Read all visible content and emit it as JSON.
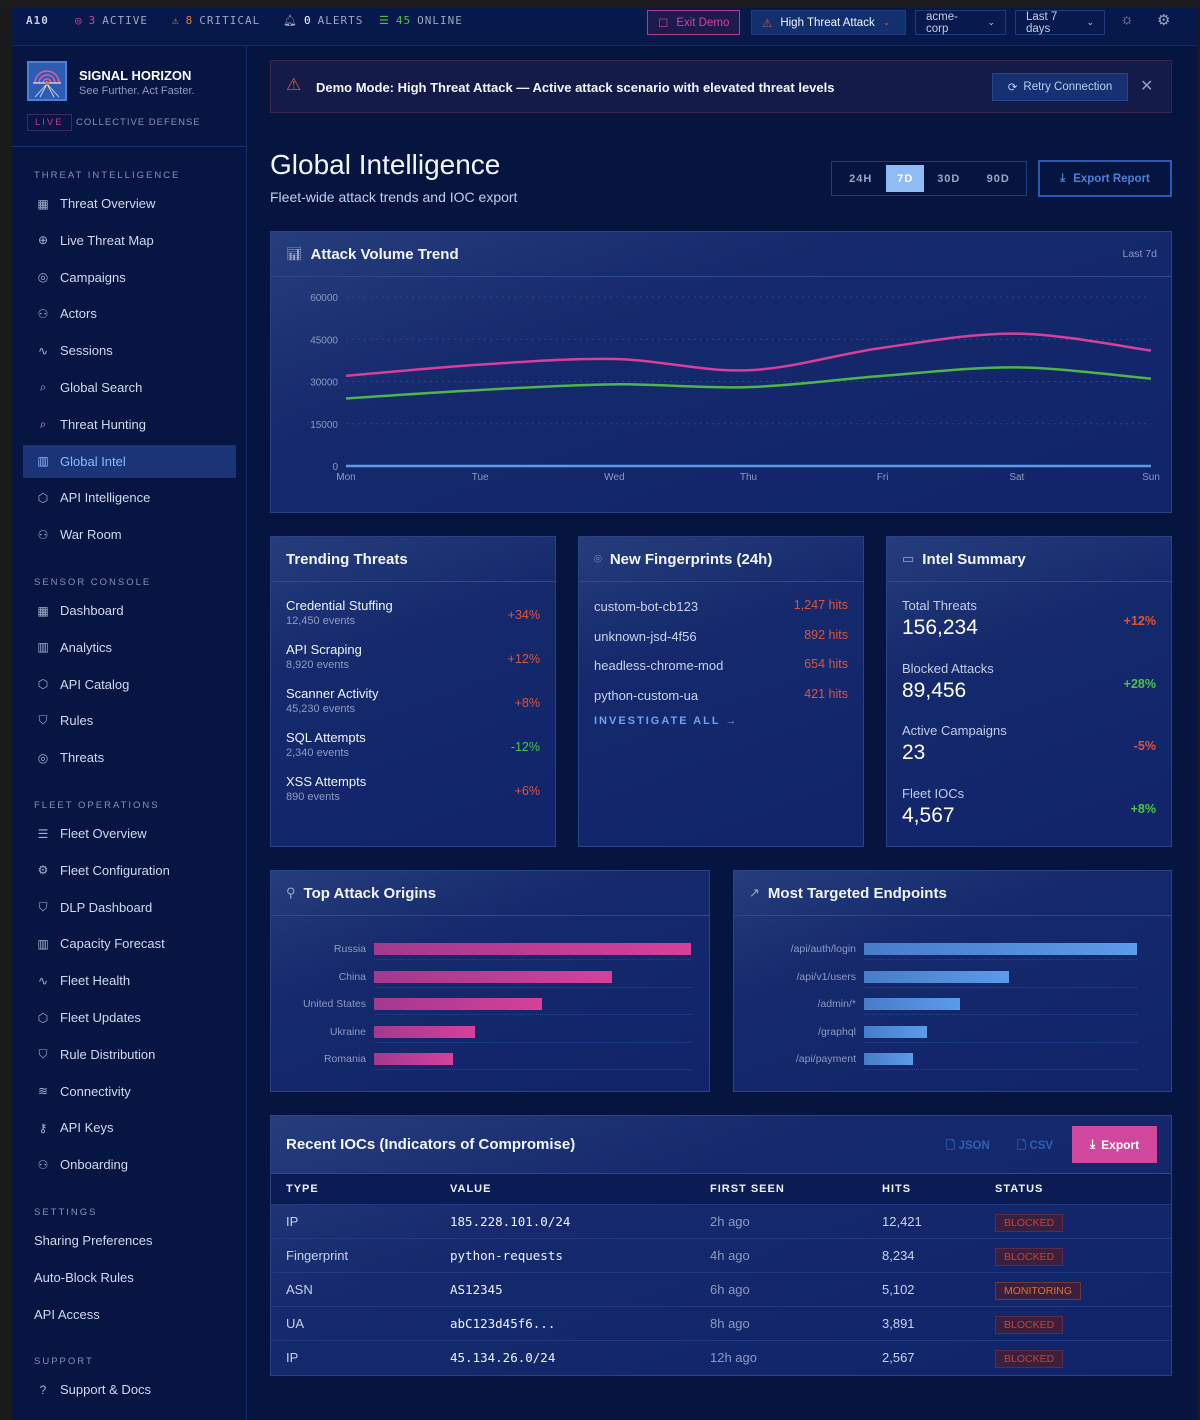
{
  "topbar": {
    "org": "A10",
    "active_count": "3",
    "active_label": "ACTIVE",
    "critical_count": "8",
    "critical_label": "CRITICAL",
    "alerts_count": "0",
    "alerts_label": "ALERTS",
    "online_count": "45",
    "online_label": "ONLINE",
    "exit_demo": "Exit Demo",
    "scenario": "High Threat Attack",
    "tenant": "acme-corp",
    "range": "Last 7 days"
  },
  "brand": {
    "name": "SIGNAL HORIZON",
    "tagline": "See Further. Act Faster.",
    "live": "LIVE",
    "mode": "COLLECTIVE DEFENSE"
  },
  "sidebar": {
    "sections": [
      {
        "title": "THREAT INTELLIGENCE",
        "items": [
          {
            "label": "Threat Overview",
            "icon": "grid-icon"
          },
          {
            "label": "Live Threat Map",
            "icon": "globe-icon"
          },
          {
            "label": "Campaigns",
            "icon": "target-icon"
          },
          {
            "label": "Actors",
            "icon": "user-plus-icon"
          },
          {
            "label": "Sessions",
            "icon": "activity-icon"
          },
          {
            "label": "Global Search",
            "icon": "search-icon"
          },
          {
            "label": "Threat Hunting",
            "icon": "search-icon"
          },
          {
            "label": "Global Intel",
            "icon": "bar-chart-icon",
            "active": true
          },
          {
            "label": "API Intelligence",
            "icon": "cube-icon"
          },
          {
            "label": "War Room",
            "icon": "users-icon"
          }
        ]
      },
      {
        "title": "SENSOR CONSOLE",
        "items": [
          {
            "label": "Dashboard",
            "icon": "grid-icon"
          },
          {
            "label": "Analytics",
            "icon": "bar-chart-icon"
          },
          {
            "label": "API Catalog",
            "icon": "cube-icon"
          },
          {
            "label": "Rules",
            "icon": "shield-icon"
          },
          {
            "label": "Threats",
            "icon": "target-icon"
          }
        ]
      },
      {
        "title": "FLEET OPERATIONS",
        "items": [
          {
            "label": "Fleet Overview",
            "icon": "server-icon"
          },
          {
            "label": "Fleet Configuration",
            "icon": "gear-icon"
          },
          {
            "label": "DLP Dashboard",
            "icon": "shield-icon"
          },
          {
            "label": "Capacity Forecast",
            "icon": "bar-chart-icon"
          },
          {
            "label": "Fleet Health",
            "icon": "activity-icon"
          },
          {
            "label": "Fleet Updates",
            "icon": "cube-icon"
          },
          {
            "label": "Rule Distribution",
            "icon": "shield-icon"
          },
          {
            "label": "Connectivity",
            "icon": "wifi-icon"
          },
          {
            "label": "API Keys",
            "icon": "key-icon"
          },
          {
            "label": "Onboarding",
            "icon": "user-plus-icon"
          }
        ]
      },
      {
        "title": "SETTINGS",
        "items": [
          {
            "label": "Sharing Preferences"
          },
          {
            "label": "Auto-Block Rules"
          },
          {
            "label": "API Access"
          }
        ]
      },
      {
        "title": "SUPPORT",
        "items": [
          {
            "label": "Support & Docs",
            "icon": "help-icon"
          }
        ]
      }
    ]
  },
  "banner": {
    "text": "Demo Mode: High Threat Attack — Active attack scenario with elevated threat levels",
    "retry": "Retry Connection"
  },
  "page": {
    "title": "Global Intelligence",
    "subtitle": "Fleet-wide attack trends and IOC export",
    "ranges": [
      "24H",
      "7D",
      "30D",
      "90D"
    ],
    "active_range": "7D",
    "export": "Export Report"
  },
  "trend": {
    "title": "Attack Volume Trend",
    "period": "Last 7d"
  },
  "chart_data": [
    {
      "type": "line",
      "title": "Attack Volume Trend",
      "categories": [
        "Mon",
        "Tue",
        "Wed",
        "Thu",
        "Fri",
        "Sat",
        "Sun"
      ],
      "ylim": [
        0,
        60000
      ],
      "yticks": [
        0,
        15000,
        30000,
        45000,
        60000
      ],
      "grid": true,
      "series": [
        {
          "color": "#d6409b",
          "values": [
            32000,
            36000,
            38000,
            34000,
            42000,
            47000,
            41000
          ]
        },
        {
          "color": "#4fb548",
          "values": [
            24000,
            27000,
            29000,
            28000,
            32000,
            35000,
            31000
          ]
        },
        {
          "color": "#5b9bea",
          "values": [
            0,
            0,
            0,
            0,
            0,
            0,
            0
          ]
        }
      ]
    },
    {
      "type": "bar",
      "title": "Top Attack Origins",
      "orientation": "horizontal",
      "categories": [
        "Russia",
        "China",
        "United States",
        "Ukraine",
        "Romania"
      ],
      "values": [
        1.0,
        0.75,
        0.53,
        0.32,
        0.25
      ],
      "color": "#d6409b"
    },
    {
      "type": "bar",
      "title": "Most Targeted Endpoints",
      "orientation": "horizontal",
      "categories": [
        "/api/auth/login",
        "/api/v1/users",
        "/admin/*",
        "/graphql",
        "/api/payment"
      ],
      "values": [
        1.0,
        0.53,
        0.35,
        0.23,
        0.18
      ],
      "color": "#5b9bea"
    }
  ],
  "trending": {
    "title": "Trending Threats",
    "items": [
      {
        "name": "Credential Stuffing",
        "events": "12,450 events",
        "change": "+34%",
        "dir": "up"
      },
      {
        "name": "API Scraping",
        "events": "8,920 events",
        "change": "+12%",
        "dir": "up"
      },
      {
        "name": "Scanner Activity",
        "events": "45,230 events",
        "change": "+8%",
        "dir": "up"
      },
      {
        "name": "SQL Attempts",
        "events": "2,340 events",
        "change": "-12%",
        "dir": "down"
      },
      {
        "name": "XSS Attempts",
        "events": "890 events",
        "change": "+6%",
        "dir": "up"
      }
    ]
  },
  "fingerprints": {
    "title": "New Fingerprints (24h)",
    "items": [
      {
        "name": "custom-bot-cb123",
        "hits": "1,247 hits"
      },
      {
        "name": "unknown-jsd-4f56",
        "hits": "892 hits"
      },
      {
        "name": "headless-chrome-mod",
        "hits": "654 hits"
      },
      {
        "name": "python-custom-ua",
        "hits": "421 hits"
      }
    ],
    "link": "INVESTIGATE ALL →"
  },
  "summary": {
    "title": "Intel Summary",
    "items": [
      {
        "label": "Total Threats",
        "value": "156,234",
        "change": "+12%",
        "color": "red"
      },
      {
        "label": "Blocked Attacks",
        "value": "89,456",
        "change": "+28%",
        "color": "green"
      },
      {
        "label": "Active Campaigns",
        "value": "23",
        "change": "-5%",
        "color": "red"
      },
      {
        "label": "Fleet IOCs",
        "value": "4,567",
        "change": "+8%",
        "color": "green"
      }
    ]
  },
  "origins": {
    "title": "Top Attack Origins"
  },
  "endpoints": {
    "title": "Most Targeted Endpoints"
  },
  "iocs": {
    "title": "Recent IOCs (Indicators of Compromise)",
    "json": "JSON",
    "csv": "CSV",
    "export": "Export",
    "columns": [
      "TYPE",
      "VALUE",
      "FIRST SEEN",
      "HITS",
      "STATUS"
    ],
    "rows": [
      [
        "IP",
        "185.228.101.0/24",
        "2h ago",
        "12,421",
        "BLOCKED"
      ],
      [
        "Fingerprint",
        "python-requests",
        "4h ago",
        "8,234",
        "BLOCKED"
      ],
      [
        "ASN",
        "AS12345",
        "6h ago",
        "5,102",
        "MONITORING"
      ],
      [
        "UA",
        "abC123d45f6...",
        "8h ago",
        "3,891",
        "BLOCKED"
      ],
      [
        "IP",
        "45.134.26.0/24",
        "12h ago",
        "2,567",
        "BLOCKED"
      ]
    ]
  }
}
